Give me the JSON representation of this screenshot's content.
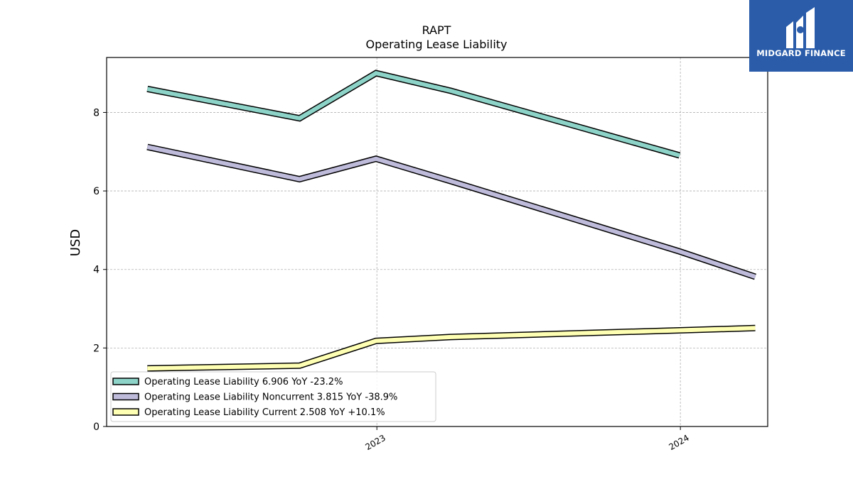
{
  "chart_data": {
    "type": "line",
    "title": "RAPT",
    "subtitle": "Operating Lease Liability",
    "xlabel": "",
    "ylabel": "USD",
    "x": [
      "2022-03-31",
      "2022-09-30",
      "2022-12-31",
      "2023-03-31",
      "2023-12-31",
      "2024-03-31"
    ],
    "xticks": [
      "2023",
      "2024"
    ],
    "xtick_dates": [
      "2023-01-01",
      "2024-01-01"
    ],
    "xlim": [
      "2022-02-10",
      "2024-04-15"
    ],
    "yticks": [
      0,
      2,
      4,
      6,
      8
    ],
    "ylim": [
      0,
      9.4
    ],
    "grid": true,
    "legend_position": "lower-left",
    "series": [
      {
        "name": "Operating Lease Liability",
        "legend_label": "Operating Lease Liability  6.906 YoY -23.2%",
        "color": "#8dd3c7",
        "values": [
          8.6,
          7.85,
          9.0,
          8.55,
          6.906,
          null
        ]
      },
      {
        "name": "Operating Lease Liability Noncurrent",
        "legend_label": "Operating Lease Liability Noncurrent  3.815 YoY -38.9%",
        "color": "#bebada",
        "values": [
          7.12,
          6.3,
          6.82,
          6.25,
          4.46,
          3.815
        ]
      },
      {
        "name": "Operating Lease Liability Current",
        "legend_label": "Operating Lease Liability Current  2.508 YoY +10.1%",
        "color": "#ffffb3",
        "values": [
          1.48,
          1.55,
          2.18,
          2.28,
          2.45,
          2.508
        ]
      }
    ]
  },
  "logo": {
    "text": "MIDGARD FINANCE",
    "background": "#2a5caa"
  }
}
